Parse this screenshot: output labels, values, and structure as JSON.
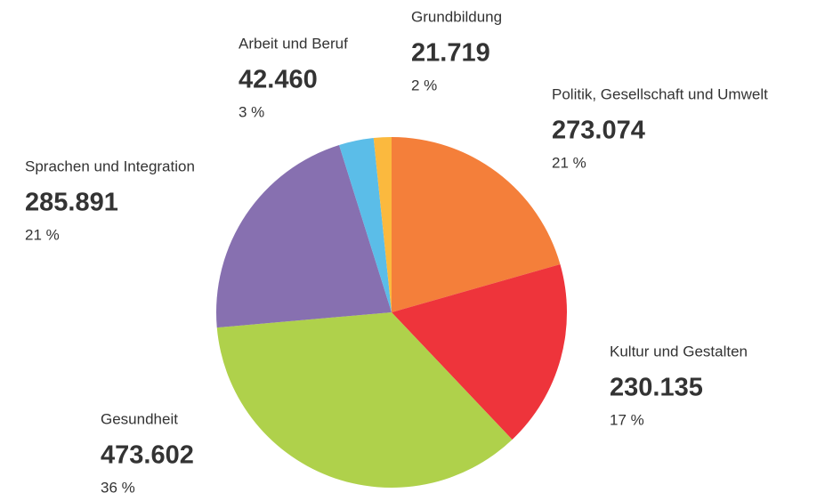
{
  "chart_data": {
    "type": "pie",
    "categories": [
      "Politik, Gesellschaft und Umwelt",
      "Kultur und Gestalten",
      "Gesundheit",
      "Sprachen und Integration",
      "Arbeit und Beruf",
      "Grundbildung"
    ],
    "values": [
      273074,
      230135,
      473602,
      285891,
      42460,
      21719
    ],
    "value_labels": [
      "273.074",
      "230.135",
      "473.602",
      "285.891",
      "42.460",
      "21.719"
    ],
    "percentages": [
      21,
      17,
      36,
      21,
      3,
      2
    ],
    "percentage_labels": [
      "21 %",
      "17 %",
      "36 %",
      "21 %",
      "3 %",
      "2 %"
    ],
    "colors": [
      "#f47f3a",
      "#ee343b",
      "#afd14b",
      "#8770b0",
      "#5bbde8",
      "#fbb93e"
    ]
  }
}
